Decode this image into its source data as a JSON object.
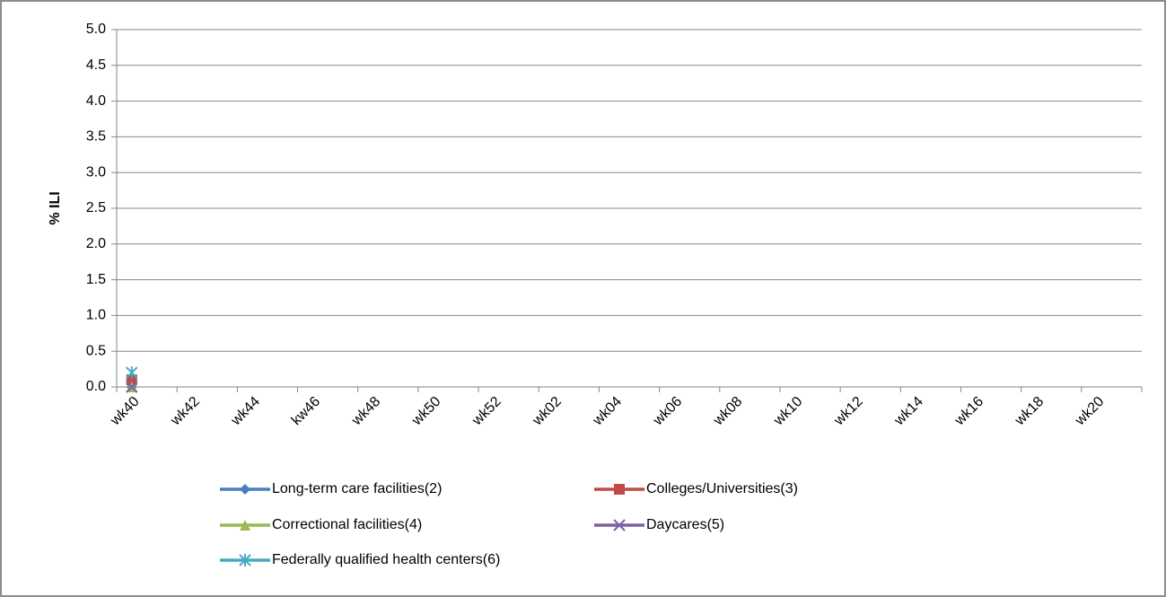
{
  "chart_data": {
    "type": "line",
    "y_label": "% ILI",
    "categories": [
      "wk40",
      null,
      "wk42",
      null,
      "wk44",
      null,
      "kw46",
      null,
      "wk48",
      null,
      "wk50",
      null,
      "wk52",
      null,
      "wk02",
      null,
      "wk04",
      null,
      "wk06",
      null,
      "wk08",
      null,
      "wk10",
      null,
      "wk12",
      null,
      "wk14",
      null,
      "wk16",
      null,
      "wk18",
      null,
      "wk20",
      null
    ],
    "series": [
      {
        "name": "Long-term care facilities(2)",
        "color": "#4a7ebb",
        "marker": "diamond",
        "values": [
          0.0,
          null,
          null,
          null,
          null,
          null,
          null,
          null,
          null,
          null,
          null,
          null,
          null,
          null,
          null,
          null,
          null,
          null,
          null,
          null,
          null,
          null,
          null,
          null,
          null,
          null,
          null,
          null,
          null,
          null,
          null,
          null,
          null,
          null
        ]
      },
      {
        "name": "Colleges/Universities(3)",
        "color": "#be4b48",
        "marker": "square",
        "values": [
          0.1,
          null,
          null,
          null,
          null,
          null,
          null,
          null,
          null,
          null,
          null,
          null,
          null,
          null,
          null,
          null,
          null,
          null,
          null,
          null,
          null,
          null,
          null,
          null,
          null,
          null,
          null,
          null,
          null,
          null,
          null,
          null,
          null,
          null
        ]
      },
      {
        "name": "Correctional facilities(4)",
        "color": "#98b954",
        "marker": "triangle",
        "values": [
          0.0,
          null,
          null,
          null,
          null,
          null,
          null,
          null,
          null,
          null,
          null,
          null,
          null,
          null,
          null,
          null,
          null,
          null,
          null,
          null,
          null,
          null,
          null,
          null,
          null,
          null,
          null,
          null,
          null,
          null,
          null,
          null,
          null,
          null
        ]
      },
      {
        "name": "Daycares(5)",
        "color": "#7d60a0",
        "marker": "x",
        "values": [
          0.0,
          null,
          null,
          null,
          null,
          null,
          null,
          null,
          null,
          null,
          null,
          null,
          null,
          null,
          null,
          null,
          null,
          null,
          null,
          null,
          null,
          null,
          null,
          null,
          null,
          null,
          null,
          null,
          null,
          null,
          null,
          null,
          null,
          null
        ]
      },
      {
        "name": "Federally qualified health centers(6)",
        "color": "#46aac5",
        "marker": "star",
        "values": [
          0.2,
          null,
          null,
          null,
          null,
          null,
          null,
          null,
          null,
          null,
          null,
          null,
          null,
          null,
          null,
          null,
          null,
          null,
          null,
          null,
          null,
          null,
          null,
          null,
          null,
          null,
          null,
          null,
          null,
          null,
          null,
          null,
          null,
          null
        ]
      }
    ],
    "ylim": [
      0,
      5
    ],
    "yticks": [
      {
        "value": 0,
        "label": "0.0"
      },
      0.5,
      {
        "value": 1,
        "label": "1.0"
      },
      1.5,
      {
        "value": 2,
        "label": "2.0"
      },
      2.5,
      {
        "value": 3,
        "label": "3.0"
      },
      3.5,
      {
        "value": 4,
        "label": "4.0"
      },
      4.5,
      {
        "value": 5,
        "label": "5.0"
      }
    ],
    "grid": true,
    "legend": "bottom"
  }
}
